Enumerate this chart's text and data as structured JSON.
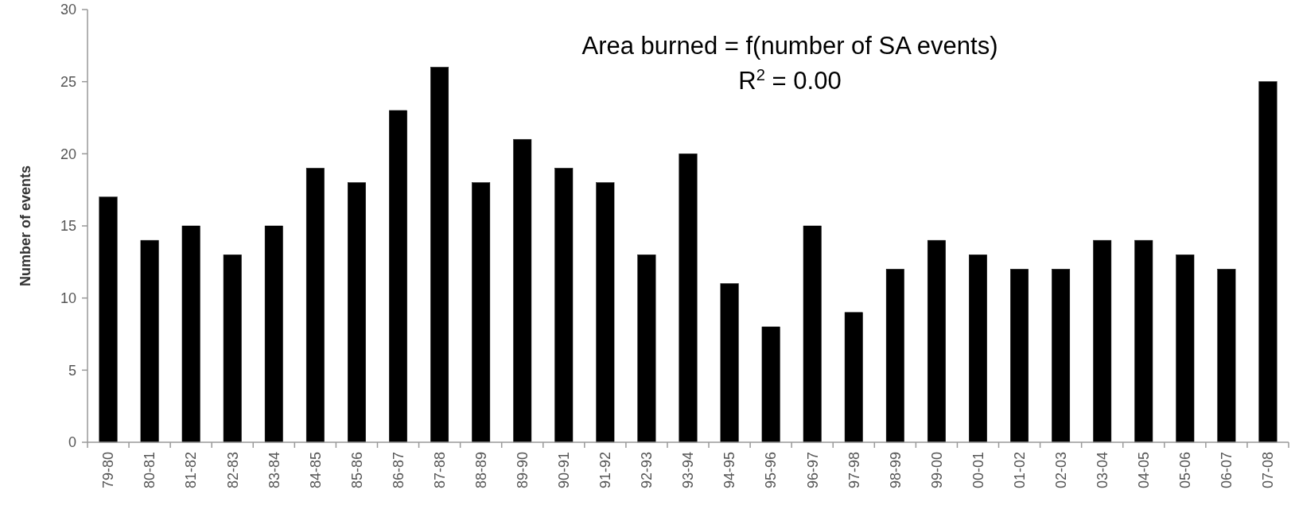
{
  "chart_data": {
    "type": "bar",
    "ylabel": "Number of events",
    "categories": [
      "79-80",
      "80-81",
      "81-82",
      "82-83",
      "83-84",
      "84-85",
      "85-86",
      "86-87",
      "87-88",
      "88-89",
      "89-90",
      "90-91",
      "91-92",
      "92-93",
      "93-94",
      "94-95",
      "95-96",
      "96-97",
      "97-98",
      "98-99",
      "99-00",
      "00-01",
      "01-02",
      "02-03",
      "03-04",
      "04-05",
      "05-06",
      "06-07",
      "07-08"
    ],
    "values": [
      17,
      14,
      15,
      13,
      15,
      19,
      18,
      23,
      26,
      18,
      21,
      19,
      18,
      13,
      20,
      11,
      8,
      15,
      9,
      12,
      14,
      13,
      12,
      12,
      14,
      14,
      13,
      12,
      25
    ],
    "color": "#000000",
    "ylim": [
      0,
      30
    ],
    "yticks": [
      0,
      5,
      10,
      15,
      20,
      25,
      30
    ],
    "grid": false,
    "annotations": [
      "Area burned = f(number of SA events)",
      "R$^{2}$ = 0.00"
    ]
  }
}
